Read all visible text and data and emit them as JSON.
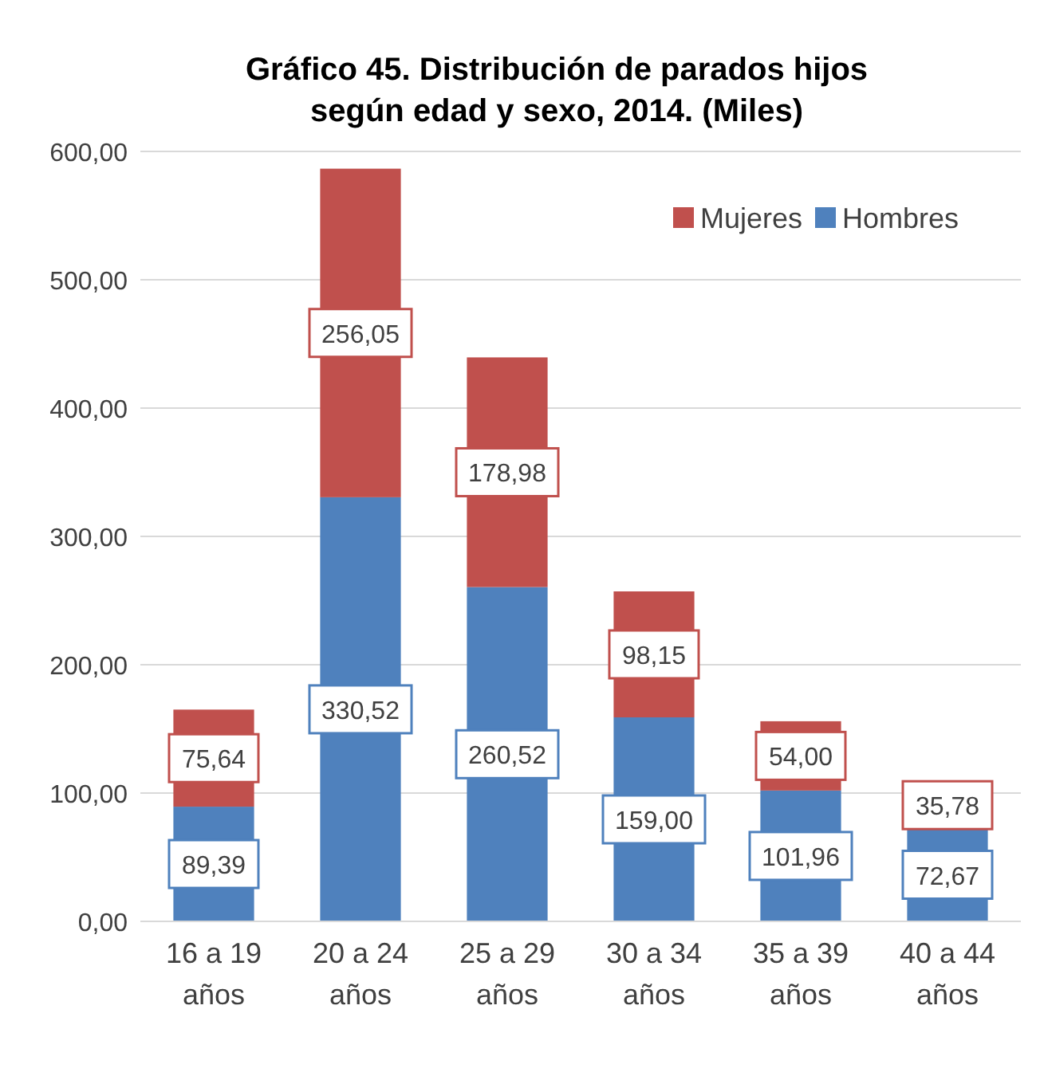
{
  "chart_data": {
    "type": "bar",
    "stacked": true,
    "title": "Gráfico 45. Distribución de parados hijos según edad y sexo, 2014. (Miles)",
    "categories": [
      "16 a 19 años",
      "20 a 24 años",
      "25 a 29 años",
      "30 a 34 años",
      "35 a 39 años",
      "40 a 44 años"
    ],
    "series": [
      {
        "name": "Hombres",
        "color": "#4f81bd",
        "values": [
          89.39,
          330.52,
          260.52,
          159.0,
          101.96,
          72.67
        ],
        "value_labels": [
          "89,39",
          "330,52",
          "260,52",
          "159,00",
          "101,96",
          "72,67"
        ]
      },
      {
        "name": "Mujeres",
        "color": "#c0504d",
        "values": [
          75.64,
          256.05,
          178.98,
          98.15,
          54.0,
          35.78
        ],
        "value_labels": [
          "75,64",
          "256,05",
          "178,98",
          "98,15",
          "54,00",
          "35,78"
        ]
      }
    ],
    "ylim": [
      0,
      600
    ],
    "yticks": [
      {
        "value": 0,
        "label": "0,00"
      },
      {
        "value": 100,
        "label": "100,00"
      },
      {
        "value": 200,
        "label": "200,00"
      },
      {
        "value": 300,
        "label": "300,00"
      },
      {
        "value": 400,
        "label": "400,00"
      },
      {
        "value": 500,
        "label": "500,00"
      },
      {
        "value": 600,
        "label": "600,00"
      }
    ],
    "grid": "y",
    "legend": "top right"
  }
}
